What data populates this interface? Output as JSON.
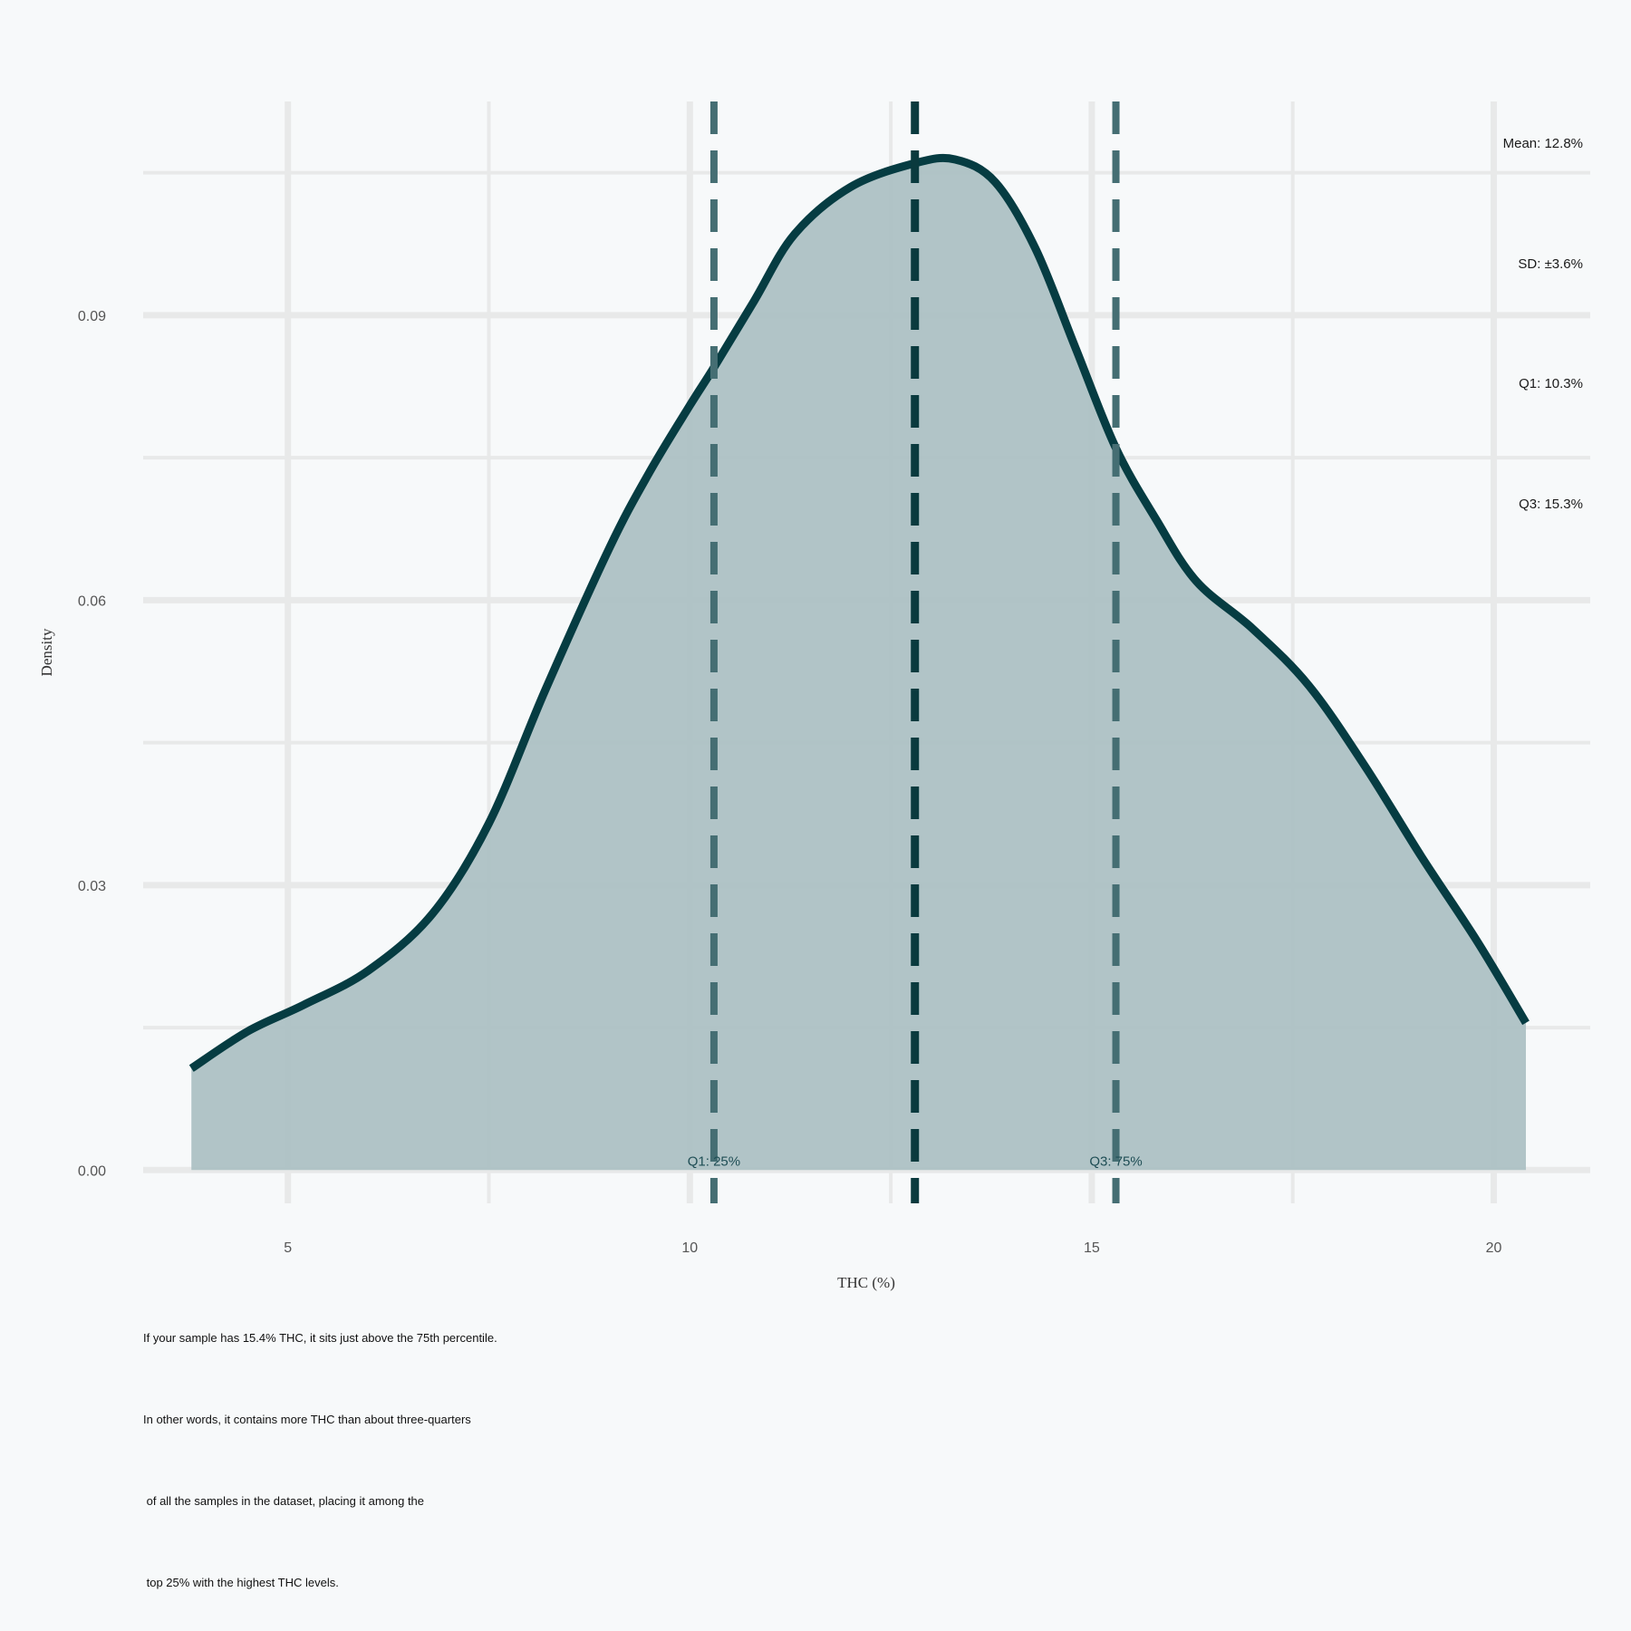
{
  "chart_data": {
    "type": "area",
    "subtype": "density",
    "xlabel": "THC (%)",
    "ylabel": "Density",
    "xlim": [
      3.2,
      21.2
    ],
    "ylim": [
      -0.0035,
      0.1125
    ],
    "xticks": [
      5,
      10,
      15,
      20
    ],
    "yticks": [
      0.0,
      0.03,
      0.06,
      0.09
    ],
    "ytick_labels": [
      "0.00",
      "0.03",
      "0.06",
      "0.09"
    ],
    "x": [
      3.8,
      4.5,
      5.2,
      6.0,
      6.8,
      7.5,
      8.2,
      9.0,
      9.5,
      10.0,
      10.3,
      10.8,
      11.3,
      12.0,
      12.8,
      13.3,
      13.8,
      14.3,
      14.8,
      15.3,
      15.8,
      16.3,
      17.0,
      17.7,
      18.4,
      19.1,
      19.8,
      20.4
    ],
    "y": [
      0.0107,
      0.0146,
      0.0174,
      0.021,
      0.027,
      0.0365,
      0.0505,
      0.0655,
      0.0735,
      0.0805,
      0.0845,
      0.0915,
      0.0985,
      0.1035,
      0.106,
      0.1064,
      0.104,
      0.097,
      0.0865,
      0.076,
      0.0685,
      0.062,
      0.057,
      0.051,
      0.0425,
      0.033,
      0.024,
      0.0155
    ],
    "vlines": [
      {
        "name": "Q1",
        "x": 10.3,
        "style": "dashed"
      },
      {
        "name": "Mean",
        "x": 12.8,
        "style": "dashed"
      },
      {
        "name": "Q3",
        "x": 15.3,
        "style": "dashed"
      }
    ],
    "stats": [
      "Mean: 12.8%",
      "SD: ±3.6%",
      "Q1: 10.3%",
      "Q3: 15.3%"
    ],
    "quartile_labels": [
      {
        "text": "Q1: 25%",
        "x": 10.3
      },
      {
        "text": "Q3: 75%",
        "x": 15.3
      }
    ],
    "grid": true,
    "colors": {
      "fill": "#adc1c4",
      "line": "#063c42",
      "q_line": "#456e73",
      "mean_line": "#0a3a3e",
      "grid": "#e8e9e9",
      "background": "#f7f9fa"
    }
  },
  "caption": [
    "If your sample has 15.4% THC, it sits just above the 75th percentile.",
    "In other words, it contains more THC than about three-quarters",
    " of all the samples in the dataset, placing it among the",
    " top 25% with the highest THC levels."
  ]
}
